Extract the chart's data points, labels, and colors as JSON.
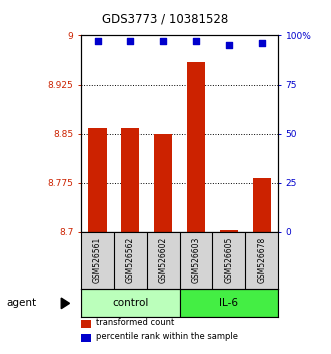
{
  "title": "GDS3773 / 10381528",
  "samples": [
    "GSM526561",
    "GSM526562",
    "GSM526602",
    "GSM526603",
    "GSM526605",
    "GSM526678"
  ],
  "bar_values": [
    8.858,
    8.858,
    8.85,
    8.96,
    8.703,
    8.783
  ],
  "percentile_values": [
    97,
    97,
    97,
    97,
    95,
    96
  ],
  "groups": [
    {
      "label": "control",
      "samples_range": [
        0,
        2
      ],
      "color": "#bbffbb"
    },
    {
      "label": "IL-6",
      "samples_range": [
        3,
        5
      ],
      "color": "#44ee44"
    }
  ],
  "bar_color": "#cc2200",
  "dot_color": "#0000cc",
  "ylim_left": [
    8.7,
    9.0
  ],
  "ylim_right": [
    0,
    100
  ],
  "yticks_left": [
    8.7,
    8.775,
    8.85,
    8.925,
    9.0
  ],
  "yticks_left_labels": [
    "8.7",
    "8.775",
    "8.85",
    "8.925",
    "9"
  ],
  "yticks_right": [
    0,
    25,
    50,
    75,
    100
  ],
  "yticks_right_labels": [
    "0",
    "25",
    "50",
    "75",
    "100%"
  ],
  "grid_values": [
    8.775,
    8.85,
    8.925
  ],
  "legend_items": [
    {
      "color": "#cc2200",
      "label": "transformed count"
    },
    {
      "color": "#0000cc",
      "label": "percentile rank within the sample"
    }
  ],
  "agent_label": "agent",
  "left_color": "#cc2200",
  "right_color": "#0000cc",
  "sample_box_color": "#d4d4d4",
  "fig_bg": "#ffffff"
}
